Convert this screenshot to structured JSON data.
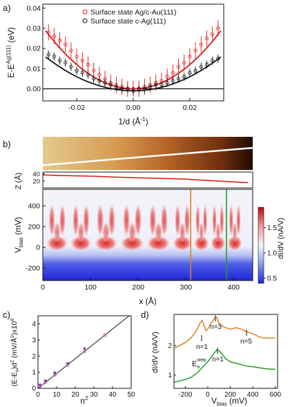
{
  "colors": {
    "red": "#e01010",
    "black": "#111111",
    "orange": "#d9801e",
    "green": "#1fa01f",
    "curve_orange": "#d9801e",
    "curve_green": "#1fa01f",
    "pink": "#d96aa3",
    "purple": "#7a2ea0",
    "topo_light": "#f5d590",
    "topo_dark": "#2a0f02"
  },
  "panel_a": {
    "label": "a)",
    "ylabel": "E-E",
    "ylabel_sup": "Ag(111)",
    "ylabel_unit": " (eV)",
    "xlabel": "1/d (Å",
    "xlabel_sup": "-1",
    "xlabel_end": ")",
    "xticks": [
      "-0.02",
      "0.00",
      "0.02"
    ],
    "yticks": [
      "0.00",
      "0.01",
      "0.02",
      "0.03",
      "0.04"
    ]
  },
  "panel_b": {
    "label": "b)",
    "z_label": "Z (Å)",
    "z_ticks": [
      "40",
      "20"
    ],
    "v_label_main": "V",
    "v_label_sub": "bias",
    "v_label_unit": " (mV)",
    "v_ticks": [
      "400",
      "200",
      "0",
      "-200"
    ],
    "x_label": "x (Å)",
    "x_ticks": [
      "0",
      "100",
      "200",
      "300",
      "400"
    ],
    "colorbar_label": "dI/dV (nA/V)",
    "colorbar_ticks": [
      "1.5",
      "1.0",
      "0.5"
    ]
  },
  "panel_c": {
    "label": "c)",
    "ylabel": "(E-E",
    "ylabel_sub": "o",
    "ylabel_rest": ")d",
    "ylabel_sup2": "2",
    "ylabel_unit": " (mV/Å",
    "ylabel_unit_sup": "2",
    "ylabel_unit_end": ")x10",
    "ylabel_sup6": "6",
    "xlabel": "n",
    "xlabel_sup": "2",
    "xticks": [
      "0",
      "10",
      "20",
      "30",
      "40",
      "50"
    ],
    "yticks": [
      "0",
      "1",
      "2",
      "3",
      "4"
    ]
  },
  "panel_d": {
    "label": "d)",
    "ylabel": "dI/dV (nA/V)",
    "xlabel": "V",
    "xlabel_sub": "bias",
    "xlabel_unit": " (mV)",
    "xticks": [
      "-200",
      "0",
      "200",
      "400",
      "600"
    ],
    "yticks": [
      "1",
      "2"
    ],
    "annotations": {
      "n1_orange": "n=1",
      "n3": "n=3",
      "n5": "n=5",
      "n1_green": "n=1",
      "estep_main": "E",
      "estep_sub": "o",
      "estep_sup": "step"
    }
  },
  "chart_data": [
    {
      "type": "scatter",
      "panel": "a",
      "xlabel": "1/d (Å-1)",
      "ylabel": "E-EAg(111) (eV)",
      "xlim": [
        -0.032,
        0.032
      ],
      "ylim": [
        -0.006,
        0.042
      ],
      "legend_position": "top",
      "series": [
        {
          "name": "Surface state Ag/c-Au(111)",
          "color": "#e01010",
          "x": [
            -0.03,
            -0.028,
            -0.026,
            -0.024,
            -0.022,
            -0.02,
            -0.018,
            -0.016,
            -0.014,
            -0.012,
            -0.01,
            -0.008,
            -0.006,
            -0.004,
            -0.002,
            0.0,
            0.002,
            0.004,
            0.006,
            0.008,
            0.01,
            0.012,
            0.014,
            0.016,
            0.018,
            0.02,
            0.022,
            0.024,
            0.026,
            0.028,
            0.03
          ],
          "y": [
            0.028,
            0.026,
            0.024,
            0.022,
            0.019,
            0.016,
            0.014,
            0.012,
            0.009,
            0.007,
            0.005,
            0.003,
            0.002,
            0.001,
            0.0,
            0.0,
            0.0,
            0.001,
            0.002,
            0.003,
            0.004,
            0.006,
            0.008,
            0.011,
            0.013,
            0.016,
            0.019,
            0.022,
            0.025,
            0.027,
            0.03
          ],
          "yerr": 0.004
        },
        {
          "name": "Surface state c-Ag(111)",
          "color": "#111111",
          "x": [
            -0.03,
            -0.028,
            -0.026,
            -0.024,
            -0.022,
            -0.02,
            -0.018,
            -0.016,
            -0.014,
            -0.012,
            -0.01,
            -0.008,
            -0.006,
            -0.004,
            -0.002,
            0.0,
            0.002,
            0.004,
            0.006,
            0.008,
            0.01,
            0.012,
            0.014,
            0.016,
            0.018,
            0.02,
            0.022,
            0.024,
            0.026,
            0.028,
            0.03
          ],
          "y": [
            0.017,
            0.016,
            0.014,
            0.013,
            0.011,
            0.009,
            0.008,
            0.007,
            0.005,
            0.004,
            0.003,
            0.002,
            0.001,
            0.0,
            0.0,
            -0.001,
            0.0,
            0.0,
            0.001,
            0.002,
            0.002,
            0.003,
            0.004,
            0.005,
            0.006,
            0.008,
            0.009,
            0.011,
            0.012,
            0.014,
            0.015
          ],
          "yerr": 0.002
        }
      ]
    },
    {
      "type": "line",
      "panel": "b-profile",
      "xlabel": "x (Å)",
      "ylabel": "Z (Å)",
      "xlim": [
        0,
        440
      ],
      "ylim": [
        0,
        45
      ],
      "x": [
        0,
        20,
        40,
        80,
        110,
        150,
        200,
        250,
        300,
        320,
        360,
        400,
        430
      ],
      "y": [
        37,
        36,
        35,
        34,
        33,
        31,
        29,
        27,
        25,
        23,
        20,
        17,
        15
      ]
    },
    {
      "type": "heatmap",
      "panel": "b-map",
      "xlabel": "x (Å)",
      "ylabel": "Vbias (mV)",
      "xlim": [
        0,
        440
      ],
      "ylim": [
        -320,
        560
      ],
      "colorbar_range": [
        0.4,
        1.9
      ],
      "marker_lines": [
        {
          "x": 310,
          "color": "#d9801e"
        },
        {
          "x": 385,
          "color": "#1fa01f"
        }
      ]
    },
    {
      "type": "scatter",
      "panel": "c",
      "xlabel": "n2",
      "ylabel": "(E-Eo)d2 (mV/Å2)x106",
      "xlim": [
        0,
        50
      ],
      "ylim": [
        0,
        4.5
      ],
      "x": [
        1,
        1,
        4,
        4,
        9,
        9,
        16,
        16,
        25,
        25,
        36
      ],
      "y": [
        0.14,
        0.2,
        0.38,
        0.45,
        0.85,
        0.95,
        1.45,
        1.52,
        2.3,
        2.45,
        3.3
      ],
      "fit_line": {
        "x": [
          0,
          50
        ],
        "y": [
          0,
          4.6
        ]
      }
    },
    {
      "type": "line",
      "panel": "d",
      "xlabel": "Vbias (mV)",
      "ylabel": "dI/dV (nA/V)",
      "xlim": [
        -300,
        620
      ],
      "ylim": [
        0.55,
        3.05
      ],
      "series": [
        {
          "color": "#d9801e",
          "x": [
            -300,
            -250,
            -200,
            -150,
            -100,
            -70,
            -50,
            -30,
            -15,
            0,
            20,
            40,
            60,
            80,
            100,
            130,
            160,
            200,
            250,
            300,
            350,
            400,
            450,
            500,
            550,
            600
          ],
          "y": [
            1.9,
            2.0,
            2.1,
            2.25,
            2.5,
            2.75,
            2.85,
            2.65,
            2.5,
            2.55,
            2.7,
            2.8,
            2.92,
            2.95,
            2.75,
            2.65,
            2.6,
            2.55,
            2.6,
            2.55,
            2.45,
            2.4,
            2.3,
            2.25,
            2.25,
            2.25
          ]
        },
        {
          "color": "#1fa01f",
          "x": [
            -300,
            -250,
            -200,
            -150,
            -100,
            -50,
            0,
            30,
            60,
            80,
            100,
            130,
            160,
            200,
            250,
            300,
            350,
            400,
            450,
            500,
            550,
            600
          ],
          "y": [
            0.75,
            0.8,
            0.85,
            0.92,
            1.05,
            1.25,
            1.45,
            1.6,
            1.75,
            1.85,
            1.82,
            1.7,
            1.55,
            1.45,
            1.4,
            1.35,
            1.3,
            1.28,
            1.25,
            1.22,
            1.2,
            1.2
          ]
        }
      ]
    }
  ]
}
